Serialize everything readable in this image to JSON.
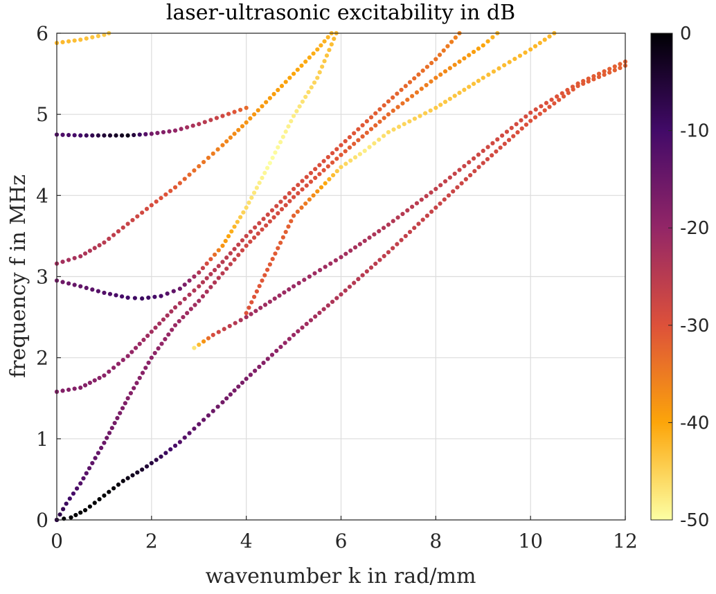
{
  "chart_data": {
    "type": "scatter",
    "title": "laser-ultrasonic excitability in dB",
    "xlabel": "wavenumber k in rad/mm",
    "ylabel": "frequency f in MHz",
    "xlim": [
      0,
      12
    ],
    "ylim": [
      0,
      6
    ],
    "x_ticks": [
      0,
      2,
      4,
      6,
      8,
      10,
      12
    ],
    "y_ticks": [
      0,
      1,
      2,
      3,
      4,
      5,
      6
    ],
    "grid": true,
    "colorbar": {
      "label": "",
      "range": [
        -50,
        0
      ],
      "ticks": [
        0,
        -10,
        -20,
        -30,
        -40,
        -50
      ],
      "colormap": "inferno"
    },
    "series": [
      {
        "points": [
          [
            0,
            0,
            0
          ],
          [
            0.3,
            0.03,
            0
          ],
          [
            0.6,
            0.12,
            0
          ],
          [
            1.0,
            0.3,
            0
          ],
          [
            1.4,
            0.48,
            -1
          ],
          [
            1.8,
            0.62,
            -4
          ],
          [
            2.2,
            0.78,
            -8
          ],
          [
            2.6,
            0.96,
            -12
          ],
          [
            3.0,
            1.18,
            -14
          ],
          [
            3.5,
            1.45,
            -16
          ],
          [
            4.0,
            1.74,
            -17
          ],
          [
            5.0,
            2.28,
            -21
          ],
          [
            6.0,
            2.78,
            -24
          ],
          [
            7.0,
            3.3,
            -26
          ],
          [
            8.0,
            3.85,
            -27
          ],
          [
            9.0,
            4.4,
            -28
          ],
          [
            10.0,
            4.92,
            -30
          ],
          [
            11.0,
            5.35,
            -31
          ],
          [
            12.0,
            5.6,
            -32
          ]
        ]
      },
      {
        "points": [
          [
            0,
            0,
            -6
          ],
          [
            0.2,
            0.2,
            -9
          ],
          [
            0.5,
            0.45,
            -12
          ],
          [
            1.0,
            0.95,
            -15
          ],
          [
            1.5,
            1.5,
            -18
          ],
          [
            2.0,
            2.0,
            -19
          ],
          [
            2.5,
            2.4,
            -21
          ],
          [
            3.0,
            2.7,
            -22
          ],
          [
            4.0,
            3.38,
            -28
          ],
          [
            5.0,
            3.98,
            -29
          ],
          [
            6.0,
            4.5,
            -31
          ],
          [
            7.0,
            5.0,
            -33
          ],
          [
            8.0,
            5.45,
            -36
          ],
          [
            9.0,
            5.85,
            -40
          ],
          [
            9.3,
            6.0,
            -42
          ]
        ]
      },
      {
        "points": [
          [
            0,
            1.58,
            -18
          ],
          [
            0.5,
            1.63,
            -18
          ],
          [
            1.0,
            1.78,
            -19
          ],
          [
            1.5,
            2.02,
            -20
          ],
          [
            2.0,
            2.32,
            -22
          ],
          [
            2.5,
            2.62,
            -23
          ],
          [
            3.0,
            2.88,
            -24
          ],
          [
            3.5,
            3.18,
            -25
          ],
          [
            4.0,
            3.5,
            -27
          ],
          [
            5.0,
            4.08,
            -29
          ],
          [
            6.0,
            4.62,
            -30
          ],
          [
            7.0,
            5.16,
            -32
          ],
          [
            8.0,
            5.68,
            -34
          ],
          [
            8.5,
            6.0,
            -36
          ]
        ]
      },
      {
        "points": [
          [
            0,
            2.95,
            -16
          ],
          [
            0.5,
            2.88,
            -14
          ],
          [
            1.0,
            2.8,
            -12
          ],
          [
            1.5,
            2.74,
            -10
          ],
          [
            1.8,
            2.73,
            -9
          ],
          [
            2.2,
            2.76,
            -11
          ],
          [
            2.6,
            2.85,
            -15
          ],
          [
            3.0,
            3.05,
            -24
          ],
          [
            3.5,
            3.38,
            -38
          ],
          [
            4.0,
            3.85,
            -46
          ],
          [
            4.5,
            4.4,
            -50
          ],
          [
            5.0,
            4.98,
            -48
          ],
          [
            5.5,
            5.45,
            -45
          ],
          [
            5.9,
            6.0,
            -42
          ]
        ]
      },
      {
        "points": [
          [
            0,
            3.16,
            -22
          ],
          [
            0.5,
            3.25,
            -23
          ],
          [
            1.0,
            3.42,
            -25
          ],
          [
            1.5,
            3.65,
            -27
          ],
          [
            2.0,
            3.88,
            -29
          ],
          [
            2.5,
            4.1,
            -31
          ],
          [
            3.0,
            4.36,
            -34
          ],
          [
            3.5,
            4.62,
            -36
          ],
          [
            4.0,
            4.9,
            -38
          ],
          [
            4.5,
            5.2,
            -39
          ],
          [
            5.0,
            5.5,
            -40
          ],
          [
            5.5,
            5.8,
            -41
          ],
          [
            5.8,
            6.0,
            -42
          ]
        ]
      },
      {
        "points": [
          [
            0,
            4.75,
            -12
          ],
          [
            0.5,
            4.74,
            -10
          ],
          [
            1.0,
            4.74,
            -5
          ],
          [
            1.5,
            4.74,
            -2
          ],
          [
            2.0,
            4.76,
            -16
          ],
          [
            2.5,
            4.8,
            -20
          ],
          [
            3.0,
            4.88,
            -24
          ],
          [
            3.5,
            4.98,
            -28
          ],
          [
            4.0,
            5.08,
            -33
          ]
        ]
      },
      {
        "points": [
          [
            2.9,
            2.12,
            -47
          ],
          [
            3.3,
            2.28,
            -29
          ],
          [
            4.0,
            2.5,
            -22
          ],
          [
            5.0,
            2.88,
            -21
          ],
          [
            6.0,
            3.24,
            -22
          ],
          [
            7.0,
            3.64,
            -24
          ],
          [
            8.0,
            4.08,
            -26
          ],
          [
            9.0,
            4.55,
            -28
          ],
          [
            10.0,
            5.02,
            -29
          ],
          [
            11.0,
            5.38,
            -31
          ],
          [
            12.0,
            5.65,
            -32
          ]
        ]
      },
      {
        "points": [
          [
            4.0,
            2.55,
            -30
          ],
          [
            5.0,
            3.75,
            -32
          ],
          [
            5.5,
            4.05,
            -38
          ],
          [
            6.0,
            4.35,
            -45
          ],
          [
            6.5,
            4.55,
            -48
          ],
          [
            7.0,
            4.78,
            -46
          ],
          [
            8.0,
            5.08,
            -44
          ],
          [
            9.0,
            5.45,
            -43
          ],
          [
            10.0,
            5.8,
            -42
          ],
          [
            10.5,
            6.0,
            -42
          ]
        ]
      },
      {
        "points": [
          [
            0,
            5.88,
            -42
          ],
          [
            0.5,
            5.92,
            -43
          ],
          [
            1.0,
            5.98,
            -44
          ],
          [
            1.1,
            6.0,
            -44
          ]
        ]
      }
    ]
  }
}
